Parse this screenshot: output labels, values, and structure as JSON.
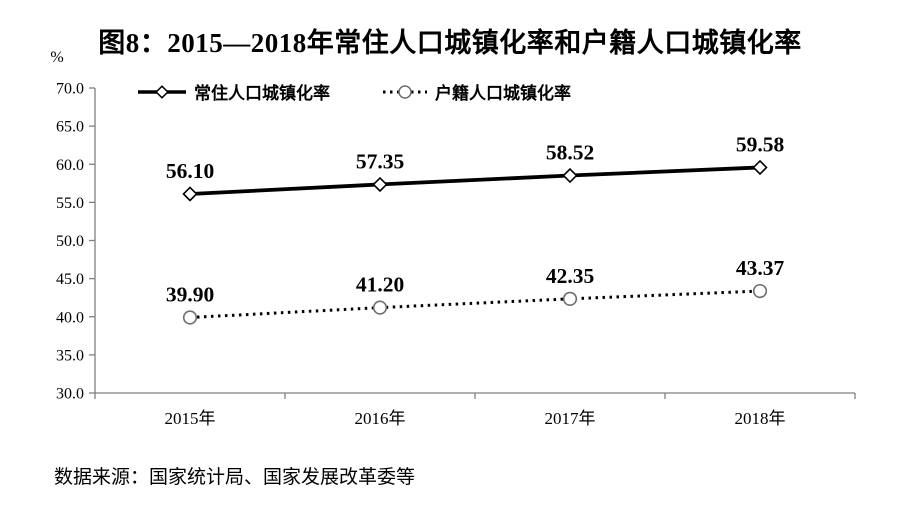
{
  "figure": {
    "title": "图8：2015—2018年常住人口城镇化率和户籍人口城镇化率",
    "source_note": "数据来源：国家统计局、国家发展改革委等"
  },
  "chart_data": {
    "type": "line",
    "title": "图8：2015—2018年常住人口城镇化率和户籍人口城镇化率",
    "categories": [
      "2015年",
      "2016年",
      "2017年",
      "2018年"
    ],
    "series": [
      {
        "name": "常住人口城镇化率",
        "values": [
          56.1,
          57.35,
          58.52,
          59.58
        ],
        "line_style": "solid",
        "marker": "diamond"
      },
      {
        "name": "户籍人口城镇化率",
        "values": [
          39.9,
          41.2,
          42.35,
          43.37
        ],
        "line_style": "dotted",
        "marker": "circle"
      }
    ],
    "data_labels": [
      [
        "56.10",
        "57.35",
        "58.52",
        "59.58"
      ],
      [
        "39.90",
        "41.20",
        "42.35",
        "43.37"
      ]
    ],
    "y_axis": {
      "unit": "%",
      "min": 30.0,
      "max": 70.0,
      "step": 5.0,
      "tick_labels": [
        "70.0",
        "65.0",
        "60.0",
        "55.0",
        "50.0",
        "45.0",
        "40.0",
        "35.0",
        "30.0"
      ]
    },
    "xlabel": "",
    "ylabel": "%",
    "legend_position": "top",
    "grid": false,
    "colors": {
      "line": "#000000",
      "axis": "#808080",
      "text": "#000000",
      "marker_fill": "#ffffff",
      "circle_marker_stroke": "#6e6e6e",
      "background": "#ffffff"
    }
  }
}
